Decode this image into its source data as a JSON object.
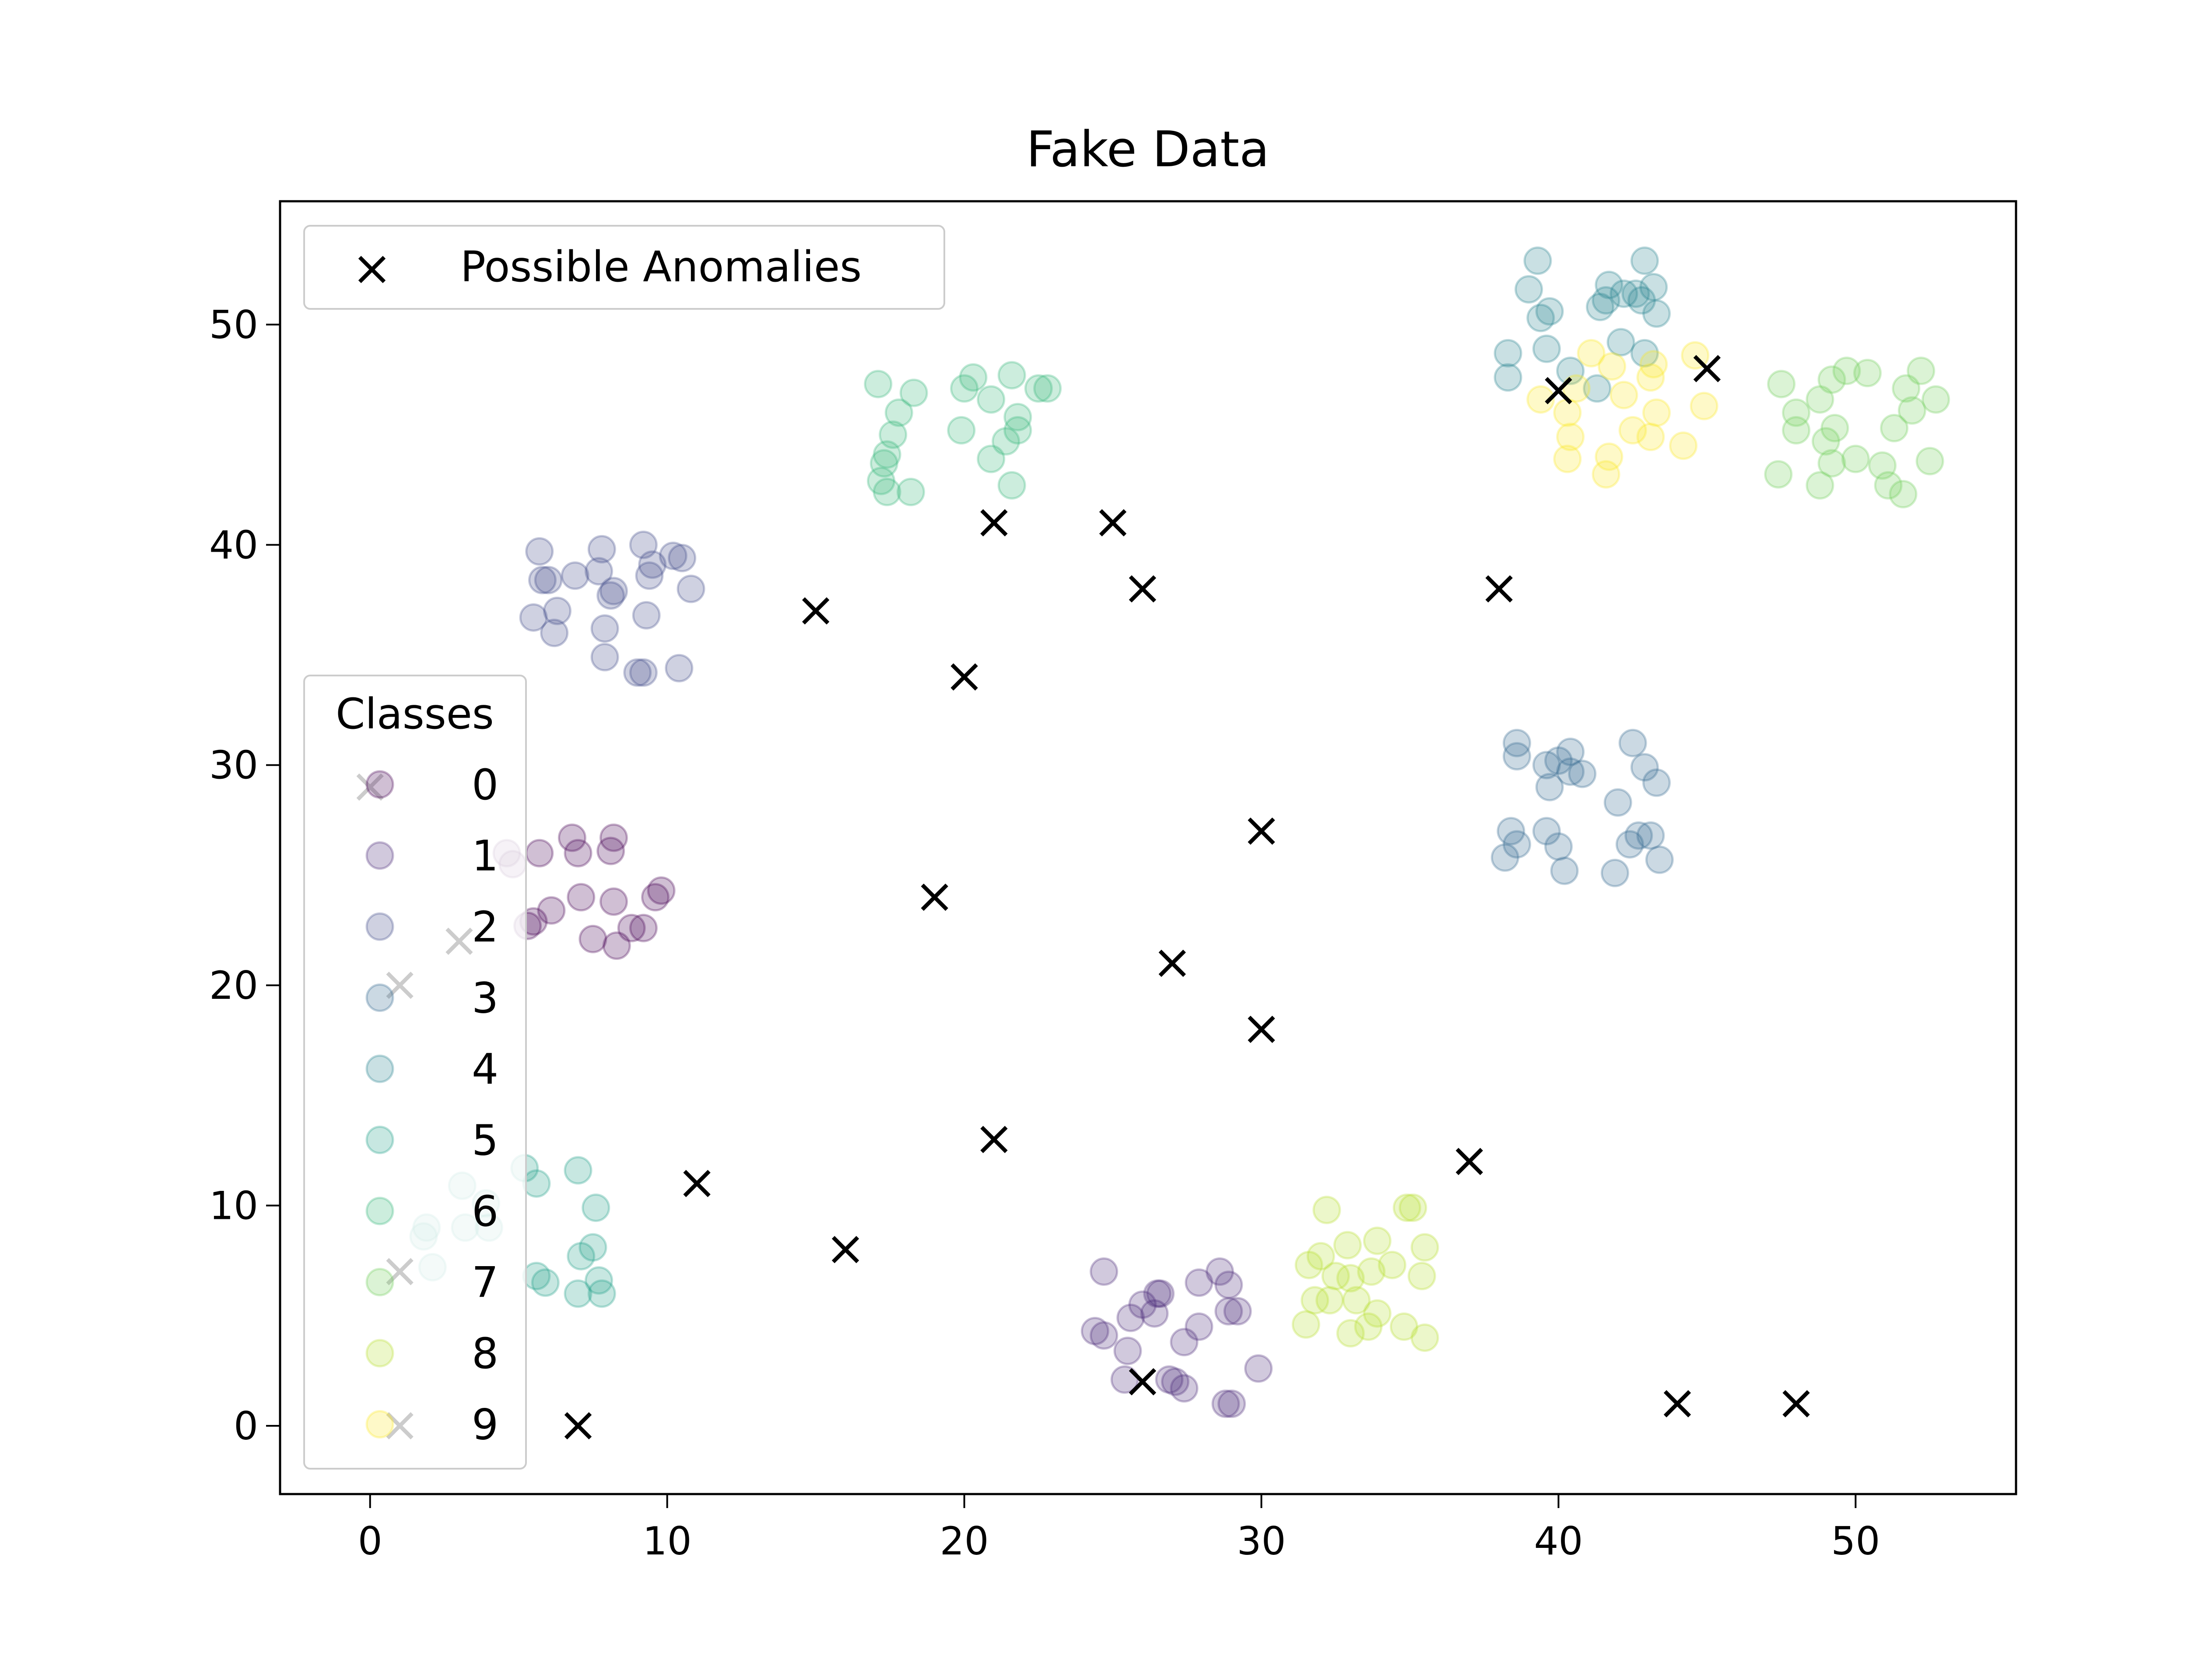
{
  "chart_data": {
    "type": "scatter",
    "title": "Fake Data",
    "xlabel": "",
    "ylabel": "",
    "xlim": [
      -3.03,
      55.4
    ],
    "ylim": [
      -3.1,
      55.6
    ],
    "xticks": [
      0,
      10,
      20,
      30,
      40,
      50
    ],
    "yticks": [
      0,
      10,
      20,
      30,
      40,
      50
    ],
    "grid": false,
    "anomaly_legend": {
      "label": "Possible Anomalies",
      "placement": "upper-left"
    },
    "class_legend": {
      "title": "Classes",
      "placement": "center-left"
    },
    "anomalies": {
      "name": "Possible Anomalies",
      "color": "#000000",
      "marker": "x",
      "points": [
        [
          40,
          47
        ],
        [
          45,
          48
        ],
        [
          21,
          41
        ],
        [
          25,
          41
        ],
        [
          26,
          38
        ],
        [
          38,
          38
        ],
        [
          15,
          37
        ],
        [
          20,
          34
        ],
        [
          30,
          27
        ],
        [
          19,
          24
        ],
        [
          27,
          21
        ],
        [
          30,
          18
        ],
        [
          21,
          13
        ],
        [
          37,
          12
        ],
        [
          11,
          11
        ],
        [
          16,
          8
        ],
        [
          26,
          2
        ],
        [
          44,
          1
        ],
        [
          48,
          1
        ],
        [
          7,
          0
        ],
        [
          0,
          29
        ],
        [
          3,
          22
        ],
        [
          1,
          20
        ],
        [
          1,
          7
        ],
        [
          1,
          0
        ]
      ]
    },
    "series": [
      {
        "name": "0",
        "color": "#440154",
        "points": [
          [
            6.8,
            26.7
          ],
          [
            8.2,
            26.7
          ],
          [
            7.0,
            26.0
          ],
          [
            5.7,
            26.0
          ],
          [
            8.1,
            26.1
          ],
          [
            7.1,
            24.0
          ],
          [
            6.1,
            23.4
          ],
          [
            8.2,
            23.8
          ],
          [
            5.3,
            22.7
          ],
          [
            5.5,
            22.9
          ],
          [
            7.5,
            22.1
          ],
          [
            8.3,
            21.8
          ],
          [
            8.8,
            22.6
          ],
          [
            9.2,
            22.6
          ],
          [
            9.6,
            24.0
          ],
          [
            9.8,
            24.3
          ],
          [
            4.6,
            26.0
          ],
          [
            4.8,
            25.5
          ]
        ]
      },
      {
        "name": "1",
        "color": "#482878",
        "points": [
          [
            24.7,
            7.0
          ],
          [
            26.5,
            6.0
          ],
          [
            26.6,
            6.0
          ],
          [
            26.0,
            5.5
          ],
          [
            26.4,
            5.1
          ],
          [
            25.6,
            4.9
          ],
          [
            24.4,
            4.3
          ],
          [
            24.7,
            4.1
          ],
          [
            25.5,
            3.4
          ],
          [
            27.4,
            3.8
          ],
          [
            27.9,
            4.5
          ],
          [
            27.9,
            6.5
          ],
          [
            28.6,
            7.0
          ],
          [
            28.9,
            6.4
          ],
          [
            28.9,
            5.2
          ],
          [
            29.2,
            5.2
          ],
          [
            25.4,
            2.1
          ],
          [
            26.9,
            2.1
          ],
          [
            27.4,
            1.7
          ],
          [
            27.1,
            2.0
          ],
          [
            28.8,
            1.0
          ],
          [
            29.0,
            1.0
          ],
          [
            29.9,
            2.6
          ]
        ]
      },
      {
        "name": "2",
        "color": "#3e4989",
        "points": [
          [
            5.7,
            39.7
          ],
          [
            5.8,
            38.4
          ],
          [
            6.0,
            38.4
          ],
          [
            6.9,
            38.6
          ],
          [
            7.7,
            38.8
          ],
          [
            7.8,
            39.8
          ],
          [
            8.2,
            37.9
          ],
          [
            8.1,
            37.7
          ],
          [
            5.5,
            36.7
          ],
          [
            6.3,
            37.0
          ],
          [
            6.2,
            36.0
          ],
          [
            7.9,
            36.2
          ],
          [
            7.9,
            34.9
          ],
          [
            9.0,
            34.2
          ],
          [
            9.2,
            34.2
          ],
          [
            10.4,
            34.4
          ],
          [
            9.3,
            36.8
          ],
          [
            9.2,
            40.0
          ],
          [
            9.4,
            38.6
          ],
          [
            9.5,
            39.1
          ],
          [
            10.2,
            39.5
          ],
          [
            10.5,
            39.4
          ],
          [
            10.8,
            38.0
          ]
        ]
      },
      {
        "name": "3",
        "color": "#31688e",
        "points": [
          [
            38.6,
            31.0
          ],
          [
            38.6,
            30.4
          ],
          [
            39.6,
            30.0
          ],
          [
            40.0,
            30.2
          ],
          [
            40.4,
            30.6
          ],
          [
            40.8,
            29.6
          ],
          [
            39.7,
            29.0
          ],
          [
            42.5,
            31.0
          ],
          [
            42.9,
            29.9
          ],
          [
            43.3,
            29.2
          ],
          [
            38.4,
            27.0
          ],
          [
            38.6,
            26.4
          ],
          [
            38.2,
            25.8
          ],
          [
            39.6,
            27.0
          ],
          [
            40.0,
            26.3
          ],
          [
            40.2,
            25.2
          ],
          [
            42.0,
            28.3
          ],
          [
            42.4,
            26.4
          ],
          [
            41.9,
            25.1
          ],
          [
            42.7,
            26.8
          ],
          [
            43.1,
            26.8
          ],
          [
            43.4,
            25.7
          ],
          [
            40.4,
            29.7
          ]
        ]
      },
      {
        "name": "4",
        "color": "#26828e",
        "points": [
          [
            39.3,
            52.9
          ],
          [
            39.0,
            51.6
          ],
          [
            39.7,
            50.6
          ],
          [
            39.4,
            50.3
          ],
          [
            38.3,
            48.7
          ],
          [
            38.3,
            47.6
          ],
          [
            39.6,
            48.9
          ],
          [
            42.9,
            52.9
          ],
          [
            41.7,
            51.8
          ],
          [
            41.4,
            50.8
          ],
          [
            42.2,
            51.4
          ],
          [
            42.6,
            51.4
          ],
          [
            43.2,
            51.7
          ],
          [
            43.3,
            50.5
          ],
          [
            41.6,
            51.1
          ],
          [
            42.8,
            51.1
          ],
          [
            42.1,
            49.2
          ],
          [
            42.9,
            48.7
          ],
          [
            41.3,
            47.1
          ],
          [
            40.4,
            47.9
          ]
        ]
      },
      {
        "name": "5",
        "color": "#1f9e89",
        "points": [
          [
            5.2,
            11.7
          ],
          [
            5.6,
            11.0
          ],
          [
            7.0,
            11.6
          ],
          [
            7.6,
            9.9
          ],
          [
            3.1,
            10.9
          ],
          [
            3.9,
            10.1
          ],
          [
            1.9,
            9.0
          ],
          [
            1.8,
            8.6
          ],
          [
            3.2,
            9.0
          ],
          [
            4.0,
            9.0
          ],
          [
            2.1,
            7.2
          ],
          [
            5.6,
            6.8
          ],
          [
            5.9,
            6.5
          ],
          [
            7.1,
            7.7
          ],
          [
            7.5,
            8.1
          ],
          [
            7.7,
            6.6
          ],
          [
            7.8,
            6.0
          ],
          [
            7.0,
            6.0
          ]
        ]
      },
      {
        "name": "6",
        "color": "#35b779",
        "points": [
          [
            17.1,
            47.3
          ],
          [
            18.3,
            46.9
          ],
          [
            17.8,
            46.0
          ],
          [
            17.6,
            45.0
          ],
          [
            17.4,
            44.1
          ],
          [
            17.3,
            43.7
          ],
          [
            17.2,
            42.9
          ],
          [
            17.4,
            42.4
          ],
          [
            18.2,
            42.4
          ],
          [
            20.3,
            47.6
          ],
          [
            20.0,
            47.1
          ],
          [
            20.9,
            46.6
          ],
          [
            21.6,
            47.7
          ],
          [
            22.5,
            47.1
          ],
          [
            22.8,
            47.1
          ],
          [
            19.9,
            45.2
          ],
          [
            21.8,
            45.2
          ],
          [
            21.4,
            44.7
          ],
          [
            20.9,
            43.9
          ],
          [
            21.6,
            42.7
          ],
          [
            21.8,
            45.8
          ]
        ]
      },
      {
        "name": "7",
        "color": "#6ece58",
        "points": [
          [
            47.5,
            47.3
          ],
          [
            48.0,
            46.0
          ],
          [
            48.0,
            45.2
          ],
          [
            47.4,
            43.2
          ],
          [
            48.8,
            46.6
          ],
          [
            49.2,
            47.5
          ],
          [
            49.7,
            47.9
          ],
          [
            50.4,
            47.8
          ],
          [
            49.3,
            45.3
          ],
          [
            49.0,
            44.7
          ],
          [
            49.2,
            43.7
          ],
          [
            48.8,
            42.7
          ],
          [
            50.0,
            43.9
          ],
          [
            50.9,
            43.6
          ],
          [
            51.1,
            42.7
          ],
          [
            51.6,
            42.3
          ],
          [
            51.3,
            45.3
          ],
          [
            51.7,
            47.1
          ],
          [
            52.2,
            47.9
          ],
          [
            52.7,
            46.6
          ],
          [
            52.5,
            43.8
          ],
          [
            51.9,
            46.1
          ]
        ]
      },
      {
        "name": "8",
        "color": "#b5de2b",
        "points": [
          [
            32.2,
            9.8
          ],
          [
            31.6,
            7.3
          ],
          [
            32.0,
            7.7
          ],
          [
            32.9,
            8.2
          ],
          [
            33.9,
            8.4
          ],
          [
            34.9,
            9.9
          ],
          [
            35.1,
            9.9
          ],
          [
            35.5,
            8.1
          ],
          [
            35.4,
            6.8
          ],
          [
            32.5,
            6.8
          ],
          [
            33.0,
            6.7
          ],
          [
            33.7,
            7.0
          ],
          [
            34.4,
            7.3
          ],
          [
            31.8,
            5.7
          ],
          [
            32.3,
            5.7
          ],
          [
            33.2,
            5.7
          ],
          [
            33.9,
            5.1
          ],
          [
            31.5,
            4.6
          ],
          [
            33.0,
            4.2
          ],
          [
            33.6,
            4.5
          ],
          [
            34.8,
            4.5
          ],
          [
            35.5,
            4.0
          ]
        ]
      },
      {
        "name": "9",
        "color": "#fde725",
        "points": [
          [
            39.4,
            46.6
          ],
          [
            40.3,
            46.0
          ],
          [
            40.4,
            44.9
          ],
          [
            40.3,
            43.9
          ],
          [
            41.1,
            48.7
          ],
          [
            41.8,
            48.1
          ],
          [
            42.2,
            46.8
          ],
          [
            42.5,
            45.2
          ],
          [
            41.7,
            44.0
          ],
          [
            41.6,
            43.2
          ],
          [
            43.2,
            48.2
          ],
          [
            43.1,
            47.6
          ],
          [
            43.3,
            46.0
          ],
          [
            43.1,
            44.9
          ],
          [
            44.2,
            44.5
          ],
          [
            44.6,
            48.6
          ],
          [
            44.9,
            46.3
          ],
          [
            40.6,
            47.1
          ]
        ]
      }
    ]
  }
}
